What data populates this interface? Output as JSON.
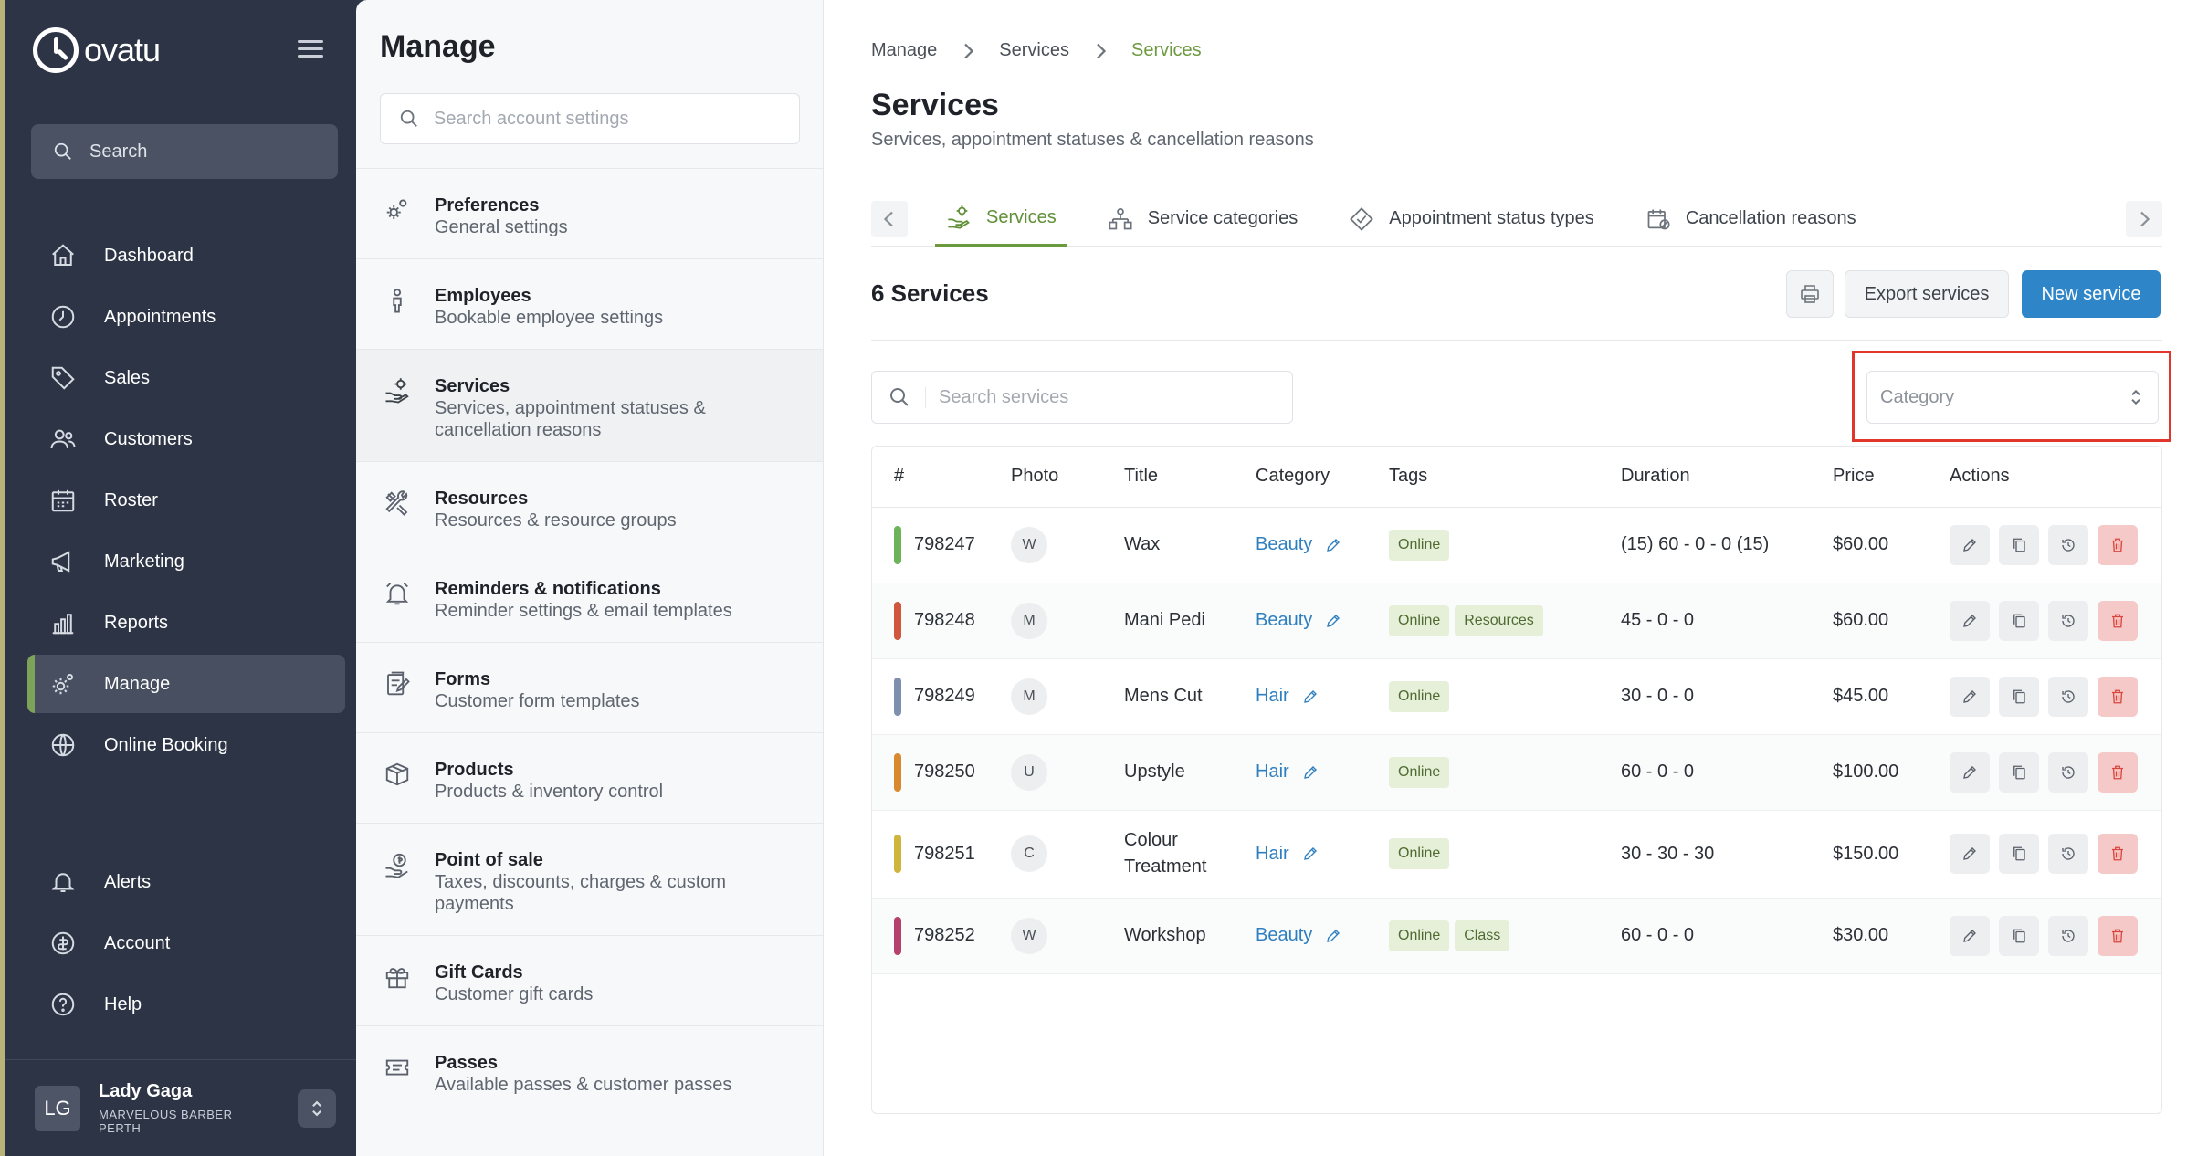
{
  "app": {
    "brand": "ovatu"
  },
  "sidebar": {
    "search_label": "Search",
    "items": [
      {
        "label": "Dashboard",
        "icon": "home-icon"
      },
      {
        "label": "Appointments",
        "icon": "clock-icon"
      },
      {
        "label": "Sales",
        "icon": "tag-icon"
      },
      {
        "label": "Customers",
        "icon": "users-icon"
      },
      {
        "label": "Roster",
        "icon": "calendar-icon"
      },
      {
        "label": "Marketing",
        "icon": "megaphone-icon"
      },
      {
        "label": "Reports",
        "icon": "chart-icon"
      },
      {
        "label": "Manage",
        "icon": "gear-icon",
        "active": true
      },
      {
        "label": "Online Booking",
        "icon": "globe-icon"
      }
    ],
    "bottom_items": [
      {
        "label": "Alerts",
        "icon": "bell-icon"
      },
      {
        "label": "Account",
        "icon": "account-icon"
      },
      {
        "label": "Help",
        "icon": "help-icon"
      }
    ],
    "user": {
      "initials": "LG",
      "name": "Lady Gaga",
      "business": "MARVELOUS BARBER PERTH"
    }
  },
  "manage": {
    "title": "Manage",
    "search_placeholder": "Search account settings",
    "items": [
      {
        "title": "Preferences",
        "sub": "General settings",
        "icon": "gears-icon"
      },
      {
        "title": "Employees",
        "sub": "Bookable employee settings",
        "icon": "person-icon"
      },
      {
        "title": "Services",
        "sub": "Services, appointment statuses & cancellation reasons",
        "icon": "service-icon",
        "active": true
      },
      {
        "title": "Resources",
        "sub": "Resources & resource groups",
        "icon": "tools-icon"
      },
      {
        "title": "Reminders & notifications",
        "sub": "Reminder settings & email templates",
        "icon": "alarm-icon"
      },
      {
        "title": "Forms",
        "sub": "Customer form templates",
        "icon": "form-icon"
      },
      {
        "title": "Products",
        "sub": "Products & inventory control",
        "icon": "box-icon"
      },
      {
        "title": "Point of sale",
        "sub": "Taxes, discounts, charges & custom payments",
        "icon": "money-icon"
      },
      {
        "title": "Gift Cards",
        "sub": "Customer gift cards",
        "icon": "gift-icon"
      },
      {
        "title": "Passes",
        "sub": "Available passes & customer passes",
        "icon": "ticket-icon"
      }
    ]
  },
  "main": {
    "breadcrumb": [
      "Manage",
      "Services",
      "Services"
    ],
    "title": "Services",
    "subtitle": "Services, appointment statuses & cancellation reasons",
    "tabs": [
      {
        "label": "Services",
        "active": true
      },
      {
        "label": "Service categories"
      },
      {
        "label": "Appointment status types"
      },
      {
        "label": "Cancellation reasons"
      }
    ],
    "count_title": "6 Services",
    "export_label": "Export services",
    "new_label": "New service",
    "search_placeholder": "Search services",
    "category_placeholder": "Category",
    "columns": [
      "#",
      "Photo",
      "Title",
      "Category",
      "Tags",
      "Duration",
      "Price",
      "Actions"
    ],
    "rows": [
      {
        "id": "798247",
        "color": "#6db35a",
        "photo": "W",
        "title": "Wax",
        "category": "Beauty",
        "tags": [
          "Online"
        ],
        "duration": "(15) 60 - 0 - 0 (15)",
        "price": "$60.00"
      },
      {
        "id": "798248",
        "color": "#d0563e",
        "photo": "M",
        "title": "Mani Pedi",
        "category": "Beauty",
        "tags": [
          "Online",
          "Resources"
        ],
        "duration": "45 - 0 - 0",
        "price": "$60.00"
      },
      {
        "id": "798249",
        "color": "#7e8fb0",
        "photo": "M",
        "title": "Mens Cut",
        "category": "Hair",
        "tags": [
          "Online"
        ],
        "duration": "30 - 0 - 0",
        "price": "$45.00"
      },
      {
        "id": "798250",
        "color": "#d98a2e",
        "photo": "U",
        "title": "Upstyle",
        "category": "Hair",
        "tags": [
          "Online"
        ],
        "duration": "60 - 0 - 0",
        "price": "$100.00"
      },
      {
        "id": "798251",
        "color": "#cdb63b",
        "photo": "C",
        "title": "Colour Treatment",
        "category": "Hair",
        "tags": [
          "Online"
        ],
        "duration": "30 - 30 - 30",
        "price": "$150.00"
      },
      {
        "id": "798252",
        "color": "#b5426e",
        "photo": "W",
        "title": "Workshop",
        "category": "Beauty",
        "tags": [
          "Online",
          "Class"
        ],
        "duration": "60 - 0 - 0",
        "price": "$30.00"
      }
    ]
  }
}
